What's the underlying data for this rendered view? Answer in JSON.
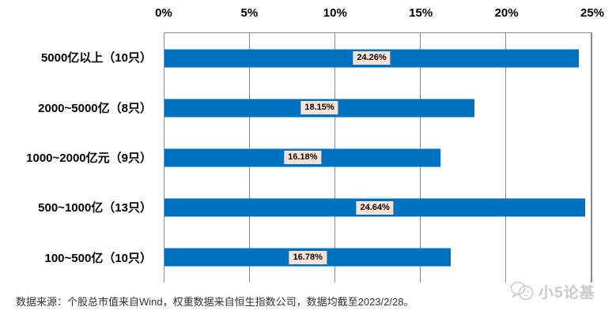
{
  "chart_data": {
    "type": "bar",
    "orientation": "horizontal",
    "categories": [
      "5000亿以上（10只）",
      "2000~5000亿（8只）",
      "1000~2000亿元（9只）",
      "500~1000亿（13只）",
      "100~500亿（10只）"
    ],
    "values": [
      24.26,
      18.15,
      16.18,
      24.64,
      16.78
    ],
    "value_labels": [
      "24.26%",
      "18.15%",
      "16.18%",
      "24.64%",
      "16.78%"
    ],
    "x_ticks": [
      "0%",
      "5%",
      "10%",
      "15%",
      "20%",
      "25%"
    ],
    "xlim": [
      0,
      25
    ],
    "grid": true,
    "legend": "none",
    "bar_color": "#0070C0",
    "value_label_bg": "#FCE4D6",
    "gridline_color": "#8a8a8a"
  },
  "footer": {
    "source_note": "数据来源：个股总市值来自Wind，权重数据来自恒生指数公司，数据均截至2023/2/28。"
  },
  "watermark": {
    "text": "小5论基"
  }
}
